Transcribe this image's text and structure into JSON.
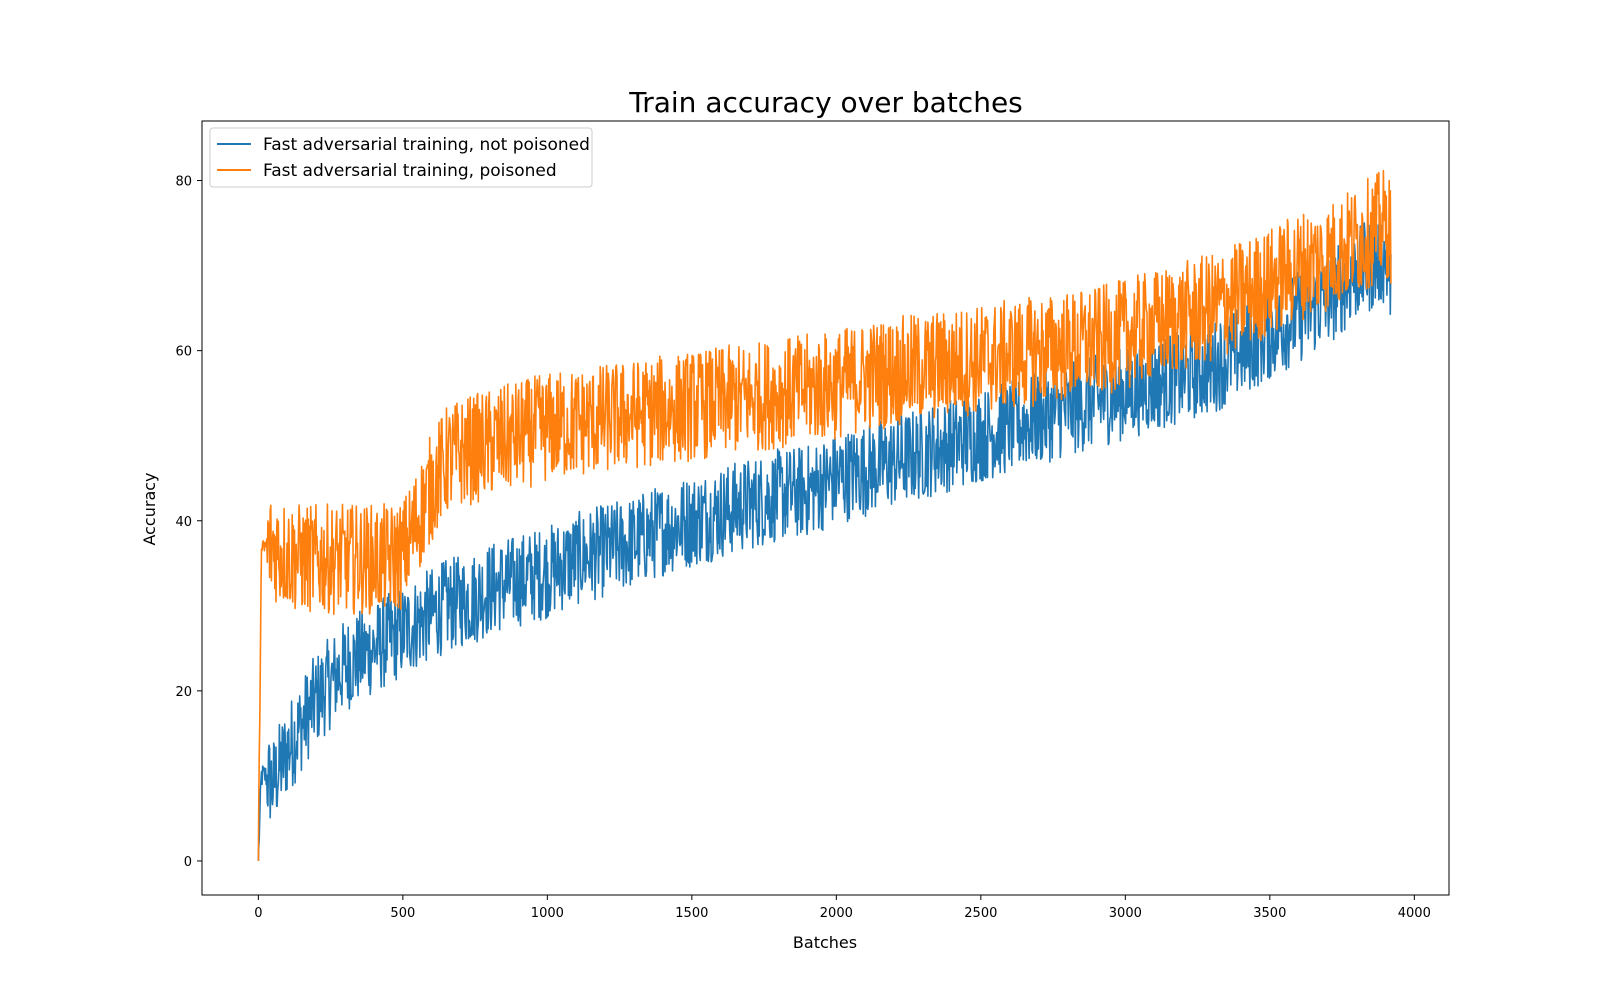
{
  "chart_data": {
    "type": "line",
    "title": "Train accuracy over batches",
    "xlabel": "Batches",
    "ylabel": "Accuracy",
    "xlim": [
      -195,
      4120
    ],
    "ylim": [
      -4,
      87
    ],
    "xticks": [
      0,
      500,
      1000,
      1500,
      2000,
      2500,
      3000,
      3500,
      4000
    ],
    "yticks": [
      0,
      20,
      40,
      60,
      80
    ],
    "grid": false,
    "legend_position": "top-left",
    "series": [
      {
        "name": "Fast adversarial training, not poisoned",
        "color": "#1f77b4",
        "x": [
          0,
          10,
          25,
          50,
          100,
          150,
          200,
          250,
          300,
          350,
          400,
          450,
          500,
          550,
          600,
          650,
          700,
          750,
          800,
          850,
          900,
          950,
          1000,
          1100,
          1200,
          1300,
          1400,
          1500,
          1600,
          1700,
          1800,
          1900,
          2000,
          2100,
          2200,
          2300,
          2400,
          2500,
          2600,
          2700,
          2800,
          2900,
          3000,
          3100,
          3200,
          3300,
          3400,
          3500,
          3600,
          3700,
          3800,
          3900,
          3920
        ],
        "y": [
          0,
          10,
          10,
          9,
          13,
          16,
          19,
          21,
          23,
          24,
          25,
          26,
          27,
          28,
          29,
          30,
          30.5,
          31,
          32,
          32.5,
          33,
          33.5,
          34,
          35.5,
          36.5,
          37.5,
          39,
          40,
          41,
          42,
          43,
          43.5,
          45,
          46,
          47,
          48,
          49,
          50,
          51,
          52,
          53,
          54,
          55,
          56,
          57,
          58,
          60,
          62,
          64,
          66,
          69,
          71,
          68
        ]
      },
      {
        "name": "Fast adversarial training, poisoned",
        "color": "#ff7f0e",
        "x": [
          0,
          10,
          25,
          50,
          100,
          150,
          200,
          250,
          300,
          350,
          400,
          450,
          500,
          550,
          600,
          650,
          700,
          750,
          800,
          850,
          900,
          950,
          1000,
          1100,
          1200,
          1300,
          1400,
          1500,
          1600,
          1700,
          1800,
          1900,
          2000,
          2100,
          2200,
          2300,
          2400,
          2500,
          2600,
          2700,
          2800,
          2900,
          3000,
          3100,
          3200,
          3300,
          3400,
          3500,
          3600,
          3700,
          3800,
          3900,
          3920
        ],
        "y": [
          0,
          36,
          37,
          37,
          36,
          35.5,
          35.5,
          35.5,
          35.5,
          35.5,
          35.5,
          35.5,
          36,
          40,
          44,
          47,
          48,
          48.5,
          49,
          49.5,
          50,
          50.5,
          51,
          51.5,
          52,
          52.5,
          53,
          53.5,
          54,
          54.5,
          55,
          55.5,
          56,
          57,
          57.5,
          58,
          58.5,
          59,
          59.5,
          60,
          60.5,
          61,
          62,
          63,
          64,
          65,
          66.5,
          68,
          70,
          71,
          73,
          75,
          74
        ]
      }
    ]
  }
}
